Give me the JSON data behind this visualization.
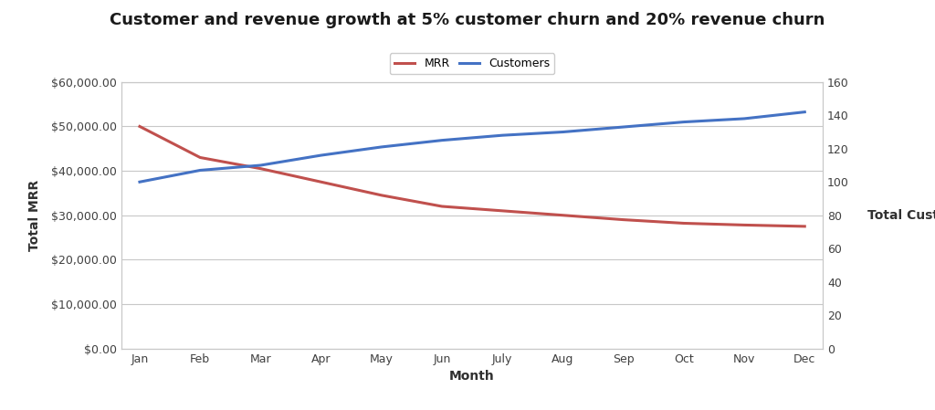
{
  "title": "Customer and revenue growth at 5% customer churn and 20% revenue churn",
  "xlabel": "Month",
  "ylabel_left": "Total MRR",
  "ylabel_right": "Total Customers",
  "months": [
    "Jan",
    "Feb",
    "Mar",
    "Apr",
    "May",
    "Jun",
    "July",
    "Aug",
    "Sep",
    "Oct",
    "Nov",
    "Dec"
  ],
  "mrr": [
    50000,
    43000,
    40500,
    37500,
    34500,
    32000,
    31000,
    30000,
    29000,
    28200,
    27800,
    27500
  ],
  "customers": [
    100,
    107,
    110,
    116,
    121,
    125,
    128,
    130,
    133,
    136,
    138,
    142
  ],
  "mrr_color": "#C0504D",
  "customers_color": "#4472C4",
  "ylim_left": [
    0,
    60000
  ],
  "ylim_right": [
    0,
    160
  ],
  "yticks_left": [
    0,
    10000,
    20000,
    30000,
    40000,
    50000,
    60000
  ],
  "yticks_right": [
    0,
    20,
    40,
    60,
    80,
    100,
    120,
    140,
    160
  ],
  "background_color": "#ffffff",
  "grid_color": "#C8C8C8",
  "legend_mrr": "MRR",
  "legend_customers": "Customers",
  "title_fontsize": 13,
  "axis_label_fontsize": 10,
  "tick_fontsize": 9,
  "legend_fontsize": 9,
  "line_width": 2.2
}
